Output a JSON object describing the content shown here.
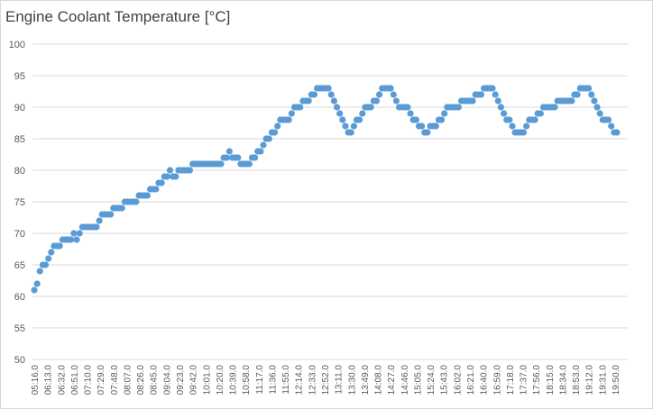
{
  "chart_data": {
    "type": "scatter",
    "title": "Engine Coolant Temperature [°C]",
    "xlabel": "",
    "ylabel": "",
    "ylim": [
      50,
      100
    ],
    "y_ticks": [
      50,
      55,
      60,
      65,
      70,
      75,
      80,
      85,
      90,
      95,
      100
    ],
    "grid": "horizontal",
    "legend": "none",
    "x_tick_labels": [
      "05:16.0",
      "06:13.0",
      "06:32.0",
      "06:51.0",
      "07:10.0",
      "07:29.0",
      "07:48.0",
      "08:07.0",
      "08:26.0",
      "08:45.0",
      "09:04.0",
      "09:23.0",
      "09:42.0",
      "10:01.0",
      "10:20.0",
      "10:39.0",
      "10:58.0",
      "11:17.0",
      "11:36.0",
      "11:55.0",
      "12:14.0",
      "12:33.0",
      "12:52.0",
      "13:11.0",
      "13:30.0",
      "13:49.0",
      "14:08.0",
      "14:27.0",
      "14:46.0",
      "15:05.0",
      "15:24.0",
      "15:43.0",
      "16:02.0",
      "16:21.0",
      "16:40.0",
      "16:59.0",
      "17:18.0",
      "17:37.0",
      "17:56.0",
      "18:15.0",
      "18:34.0",
      "18:53.0",
      "19:12.0",
      "19:31.0",
      "19:50.0"
    ],
    "colors": {
      "marker": "#5b9bd5",
      "grid": "#d9d9d9"
    },
    "series": [
      {
        "values": [
          61,
          62,
          64,
          65,
          65,
          66,
          67,
          68,
          68,
          68,
          69,
          69,
          69,
          69,
          70,
          69,
          70,
          71,
          71,
          71,
          71,
          71,
          71,
          72,
          73,
          73,
          73,
          73,
          74,
          74,
          74,
          74,
          75,
          75,
          75,
          75,
          75,
          76,
          76,
          76,
          76,
          77,
          77,
          77,
          78,
          78,
          79,
          79,
          80,
          79,
          79,
          80,
          80,
          80,
          80,
          80,
          81,
          81,
          81,
          81,
          81,
          81,
          81,
          81,
          81,
          81,
          81,
          82,
          82,
          83,
          82,
          82,
          82,
          81,
          81,
          81,
          81,
          82,
          82,
          83,
          83,
          84,
          85,
          85,
          86,
          86,
          87,
          88,
          88,
          88,
          88,
          89,
          90,
          90,
          90,
          91,
          91,
          91,
          92,
          92,
          93,
          93,
          93,
          93,
          93,
          92,
          91,
          90,
          89,
          88,
          87,
          86,
          86,
          87,
          88,
          88,
          89,
          90,
          90,
          90,
          91,
          91,
          92,
          93,
          93,
          93,
          93,
          92,
          91,
          90,
          90,
          90,
          90,
          89,
          88,
          88,
          87,
          87,
          86,
          86,
          87,
          87,
          87,
          88,
          88,
          89,
          90,
          90,
          90,
          90,
          90,
          91,
          91,
          91,
          91,
          91,
          92,
          92,
          92,
          93,
          93,
          93,
          93,
          92,
          91,
          90,
          89,
          88,
          88,
          87,
          86,
          86,
          86,
          86,
          87,
          88,
          88,
          88,
          89,
          89,
          90,
          90,
          90,
          90,
          90,
          91,
          91,
          91,
          91,
          91,
          91,
          92,
          92,
          93,
          93,
          93,
          93,
          92,
          91,
          90,
          89,
          88,
          88,
          88,
          87,
          86,
          86
        ]
      }
    ]
  }
}
